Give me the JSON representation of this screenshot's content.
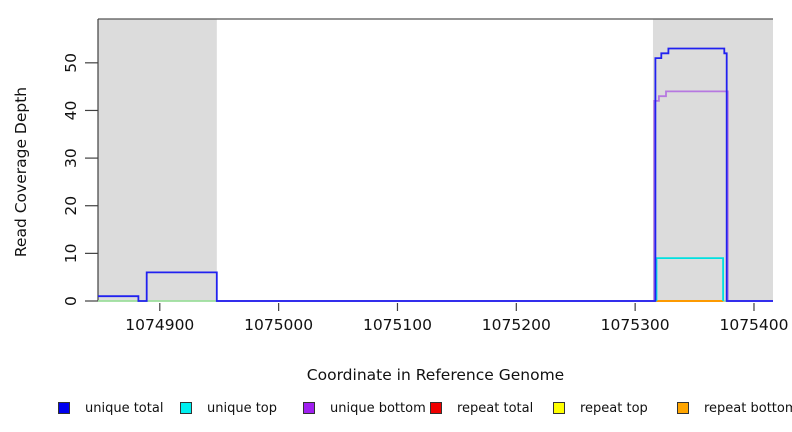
{
  "chart_data": {
    "type": "line",
    "step": true,
    "title": "",
    "xlabel": "Coordinate in Reference Genome",
    "ylabel": "Read Coverage Depth",
    "xlim": [
      1074848,
      1075416
    ],
    "ylim": [
      0,
      59.2
    ],
    "x_ticks": [
      1074900,
      1075000,
      1075100,
      1075200,
      1075300,
      1075400
    ],
    "y_ticks": [
      0,
      10,
      20,
      30,
      40,
      50
    ],
    "grid": false,
    "background_color": "#FFFFFF",
    "shaded_region_color": "#DCDCDC",
    "shaded_regions": [
      {
        "from": 1074848,
        "to": 1074948
      },
      {
        "from": 1075315,
        "to": 1075416
      }
    ],
    "series": [
      {
        "name": "zero baseline",
        "color": "#9CDE9C",
        "points": [
          [
            1074848,
            0
          ],
          [
            1075416,
            0
          ]
        ]
      },
      {
        "name": "repeat total",
        "color": "#E00000",
        "points": [
          [
            1075318,
            0
          ],
          [
            1075374,
            0
          ]
        ]
      },
      {
        "name": "repeat top",
        "color": "#F5F500",
        "points": [
          [
            1075318,
            0
          ],
          [
            1075374,
            0
          ]
        ]
      },
      {
        "name": "repeat bottom",
        "color": "#FF9400",
        "points": [
          [
            1075318,
            0
          ],
          [
            1075374,
            0
          ]
        ]
      },
      {
        "name": "unique bottom",
        "color": "#B678E0",
        "points": [
          [
            1074948,
            0
          ],
          [
            1075316,
            0
          ],
          [
            1075316,
            42
          ],
          [
            1075320,
            42
          ],
          [
            1075320,
            43
          ],
          [
            1075326,
            43
          ],
          [
            1075326,
            44
          ],
          [
            1075378,
            44
          ],
          [
            1075378,
            0
          ],
          [
            1075416,
            0
          ]
        ]
      },
      {
        "name": "unique top",
        "color": "#00E0E0",
        "points": [
          [
            1075318,
            0
          ],
          [
            1075318,
            9
          ],
          [
            1075374,
            9
          ],
          [
            1075374,
            0
          ]
        ]
      },
      {
        "name": "unique total",
        "color": "#2121F0",
        "points": [
          [
            1074848,
            1
          ],
          [
            1074882,
            1
          ],
          [
            1074882,
            0
          ],
          [
            1074889,
            0
          ],
          [
            1074889,
            6
          ],
          [
            1074948,
            6
          ],
          [
            1074948,
            0
          ],
          [
            1075317,
            0
          ],
          [
            1075317,
            51
          ],
          [
            1075322,
            51
          ],
          [
            1075322,
            52
          ],
          [
            1075328,
            52
          ],
          [
            1075328,
            53
          ],
          [
            1075375,
            53
          ],
          [
            1075375,
            52
          ],
          [
            1075377,
            52
          ],
          [
            1075377,
            0
          ],
          [
            1075416,
            0
          ]
        ]
      }
    ],
    "legend_position": "bottom",
    "legend": [
      {
        "label": "unique total",
        "color": "#0000EE"
      },
      {
        "label": "unique top",
        "color": "#00EEEE"
      },
      {
        "label": "unique bottom",
        "color": "#A020F0"
      },
      {
        "label": "repeat total",
        "color": "#EE0000"
      },
      {
        "label": "repeat top",
        "color": "#FFFF00"
      },
      {
        "label": "repeat bottom",
        "color": "#FFA500"
      }
    ]
  }
}
